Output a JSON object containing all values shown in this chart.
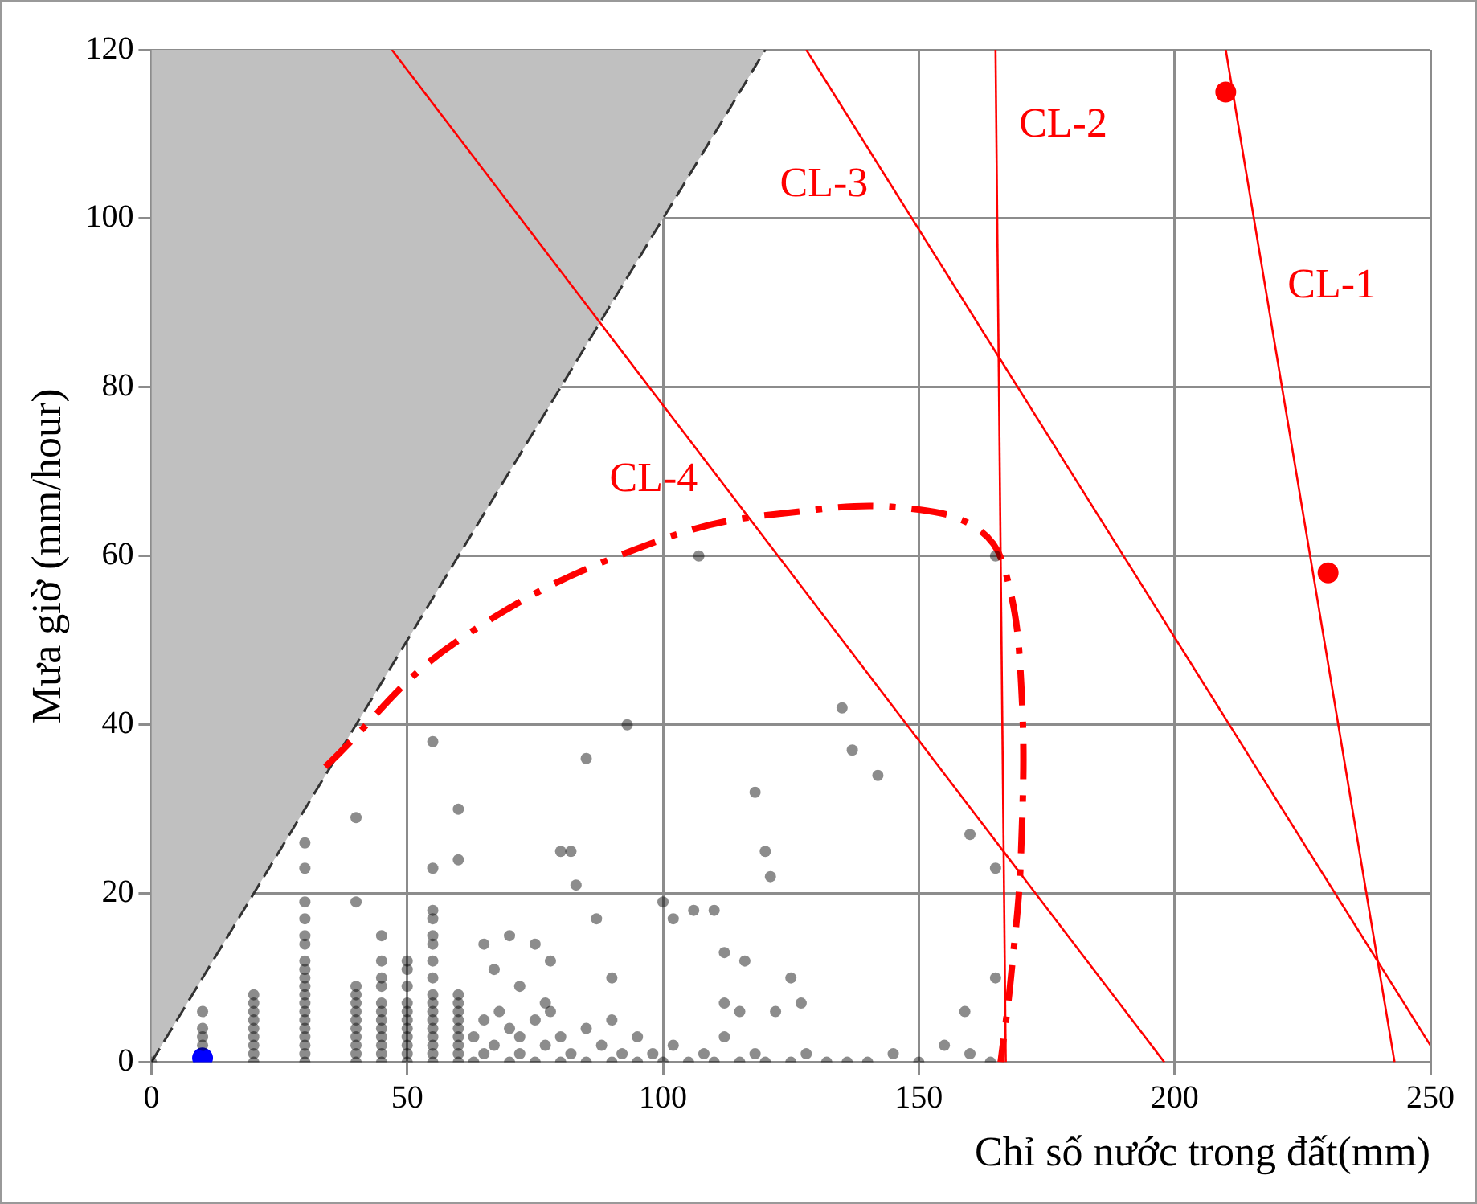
{
  "chart_data": {
    "type": "scatter",
    "xlabel": "Chỉ số nước trong đất(mm)",
    "ylabel": "Mưa giờ (mm/hour)",
    "xlim": [
      0,
      250
    ],
    "xticks": [
      0,
      50,
      100,
      150,
      200,
      250
    ],
    "ylim": [
      0,
      120
    ],
    "yticks": [
      0,
      20,
      40,
      60,
      80,
      100,
      120
    ],
    "grid": true,
    "annotations": [
      {
        "text": "CL-1",
        "x": 217.7,
        "y": 92
      },
      {
        "text": "CL-2",
        "x": 165.2,
        "y": 111
      },
      {
        "text": "CL-3",
        "x": 144.5,
        "y": 104
      },
      {
        "text": "CL-4",
        "x": 111.2,
        "y": 69
      }
    ],
    "series": [
      {
        "type": "area",
        "color": "#c0c0c0",
        "line_style": "dashed",
        "x": [
          0,
          120
        ],
        "values": [
          0,
          120
        ]
      },
      {
        "type": "line",
        "color": "#ff0000",
        "x": [
          210,
          243
        ],
        "values": [
          120,
          0
        ]
      },
      {
        "type": "line",
        "color": "#ff0000",
        "x": [
          165,
          167
        ],
        "values": [
          120,
          0
        ]
      },
      {
        "type": "line",
        "color": "#ff0000",
        "x": [
          128,
          250
        ],
        "values": [
          120,
          2
        ]
      },
      {
        "type": "line",
        "color": "#ff0000",
        "x": [
          47,
          198
        ],
        "values": [
          120,
          0
        ]
      },
      {
        "type": "line",
        "color": "#ff0000",
        "line_style": "dashed",
        "x": [
          34,
          60,
          100,
          130,
          150,
          162,
          167,
          170,
          170,
          168,
          166
        ],
        "values": [
          35,
          50,
          62,
          65.5,
          65.5,
          63,
          58,
          45,
          25,
          10,
          0
        ]
      },
      {
        "marker": "circle",
        "color": "#000000",
        "x": [
          0,
          10,
          10,
          10,
          10,
          20,
          20,
          20,
          20,
          20,
          20,
          20,
          20,
          20,
          30,
          30,
          30,
          30,
          30,
          30,
          30,
          30,
          30,
          30,
          30,
          30,
          30,
          30,
          30,
          30,
          30,
          30,
          30,
          40,
          40,
          40,
          40,
          40,
          40,
          40,
          40,
          40,
          40,
          40,
          40,
          45,
          45,
          45,
          45,
          45,
          45,
          45,
          45,
          45,
          45,
          45,
          45,
          50,
          50,
          50,
          50,
          50,
          50,
          50,
          50,
          50,
          50,
          50,
          55,
          55,
          55,
          55,
          55,
          55,
          55,
          55,
          55,
          55,
          55,
          55,
          55,
          55,
          55,
          55,
          55,
          60,
          60,
          60,
          60,
          60,
          60,
          60,
          60,
          60,
          60,
          60,
          63,
          63,
          65,
          65,
          67,
          68,
          70,
          70,
          72,
          72,
          75,
          75,
          77,
          78,
          80,
          80,
          82,
          85,
          85,
          88,
          90,
          90,
          92,
          95,
          95,
          98,
          100,
          102,
          105,
          108,
          110,
          112,
          115,
          118,
          120,
          122,
          125,
          128,
          132,
          136,
          140,
          145,
          150,
          155,
          160,
          164,
          65,
          67,
          70,
          72,
          75,
          77,
          78,
          80,
          82,
          83,
          85,
          87,
          90,
          93,
          100,
          102,
          106,
          107,
          110,
          112,
          115,
          118,
          120,
          121,
          125,
          127,
          135,
          137,
          142,
          160,
          165,
          165,
          165,
          159,
          116,
          112
        ],
        "values": [
          0,
          2,
          3,
          4,
          6,
          0,
          1,
          2,
          3,
          4,
          5,
          6,
          7,
          8,
          0,
          1,
          2,
          3,
          4,
          5,
          6,
          7,
          8,
          9,
          10,
          11,
          12,
          14,
          15,
          17,
          19,
          23,
          26,
          0,
          1,
          2,
          3,
          4,
          5,
          6,
          7,
          8,
          9,
          19,
          29,
          0,
          1,
          2,
          3,
          4,
          5,
          6,
          7,
          9,
          10,
          12,
          15,
          0,
          1,
          2,
          3,
          4,
          5,
          6,
          7,
          9,
          11,
          12,
          0,
          1,
          2,
          3,
          4,
          5,
          6,
          7,
          8,
          10,
          12,
          14,
          15,
          17,
          18,
          23,
          38,
          0,
          1,
          2,
          3,
          4,
          5,
          6,
          7,
          8,
          24,
          30,
          0,
          3,
          1,
          5,
          2,
          6,
          0,
          4,
          1,
          3,
          0,
          5,
          2,
          6,
          0,
          3,
          1,
          0,
          4,
          2,
          0,
          5,
          1,
          0,
          3,
          1,
          0,
          2,
          0,
          1,
          0,
          3,
          0,
          1,
          0,
          6,
          0,
          1,
          0,
          0,
          0,
          1,
          0,
          2,
          1,
          0,
          14,
          11,
          15,
          9,
          14,
          7,
          12,
          25,
          25,
          21,
          36,
          17,
          10,
          40,
          19,
          17,
          18,
          60,
          18,
          7,
          6,
          32,
          25,
          22,
          10,
          7,
          42,
          37,
          34,
          27,
          60,
          23,
          10,
          6,
          12,
          13
        ]
      },
      {
        "marker": "circle",
        "color": "#ff0000",
        "x": [
          210,
          230
        ],
        "values": [
          115,
          58
        ]
      },
      {
        "marker": "circle",
        "color": "#0000ff",
        "x": [
          10
        ],
        "values": [
          0.5
        ]
      }
    ]
  }
}
